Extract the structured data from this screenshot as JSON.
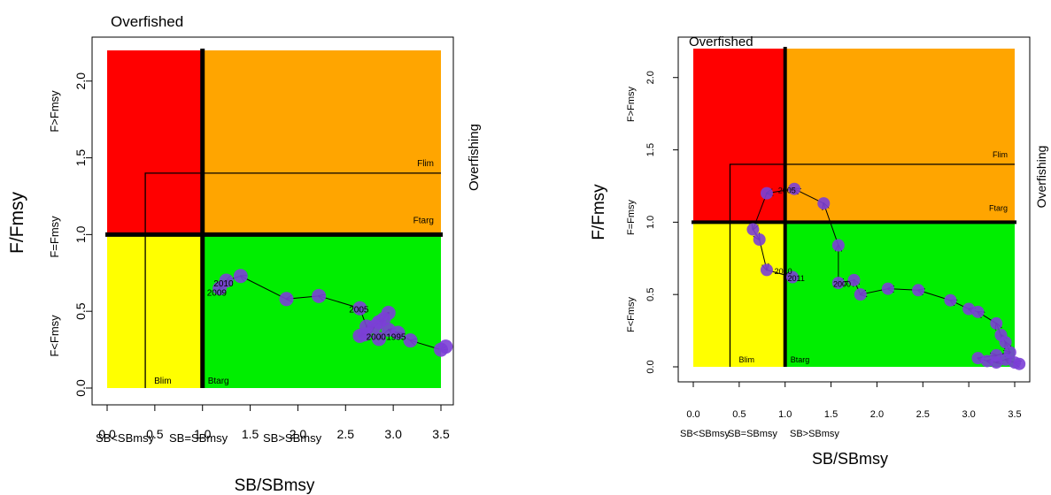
{
  "colors": {
    "red": "#ff0000",
    "orange": "#ffa500",
    "yellow": "#ffff00",
    "green": "#00ee00",
    "point": "#7b3fd6",
    "axis": "#000000"
  },
  "chart_data": [
    {
      "type": "scatter",
      "title": "Overfished",
      "xlabel": "SB/SBmsy",
      "ylabel": "F/Fmsy",
      "right_label": "Overfishing",
      "xlim": [
        0,
        3.5
      ],
      "ylim": [
        0,
        2.2
      ],
      "xticks": [
        "0.0",
        "0.5",
        "1.0",
        "1.5",
        "2.0",
        "2.5",
        "3.0",
        "3.5"
      ],
      "yticks": [
        "0.0",
        "0.5",
        "1.0",
        "1.5",
        "2.0"
      ],
      "x_zone_labels": [
        "SB<SBmsy",
        "SB=SBmsy",
        "SB>SBmsy"
      ],
      "y_zone_labels": [
        "F<Fmsy",
        "F=Fmsy",
        "F>Fmsy"
      ],
      "ref_lines": {
        "Blim": 0.4,
        "Btarg": 1.0,
        "Flim": 1.4,
        "Ftarg": 1.0
      },
      "ref_labels": {
        "Blim": "Blim",
        "Btarg": "Btarg",
        "Flim": "Flim",
        "Ftarg": "Ftarg"
      },
      "points": [
        {
          "x": 3.55,
          "y": 0.27
        },
        {
          "x": 3.5,
          "y": 0.25
        },
        {
          "x": 3.18,
          "y": 0.31
        },
        {
          "x": 3.05,
          "y": 0.36
        },
        {
          "x": 2.95,
          "y": 0.38
        },
        {
          "x": 2.85,
          "y": 0.32
        },
        {
          "x": 2.7,
          "y": 0.35
        },
        {
          "x": 2.65,
          "y": 0.34
        },
        {
          "x": 2.8,
          "y": 0.4
        },
        {
          "x": 2.9,
          "y": 0.45
        },
        {
          "x": 2.95,
          "y": 0.49
        },
        {
          "x": 2.85,
          "y": 0.43
        },
        {
          "x": 2.72,
          "y": 0.4
        },
        {
          "x": 2.65,
          "y": 0.52
        },
        {
          "x": 2.22,
          "y": 0.6
        },
        {
          "x": 1.88,
          "y": 0.58
        },
        {
          "x": 1.4,
          "y": 0.73
        },
        {
          "x": 1.25,
          "y": 0.7
        },
        {
          "x": 1.18,
          "y": 0.65
        }
      ],
      "year_labels": [
        {
          "text": "2000",
          "x": 2.82,
          "y": 0.33
        },
        {
          "text": "1995",
          "x": 3.03,
          "y": 0.33
        },
        {
          "text": "2005",
          "x": 2.64,
          "y": 0.51
        },
        {
          "text": "2010",
          "x": 1.22,
          "y": 0.68
        },
        {
          "text": "2009",
          "x": 1.15,
          "y": 0.62
        }
      ]
    },
    {
      "type": "scatter",
      "title": "Overfished",
      "xlabel": "SB/SBmsy",
      "ylabel": "F/Fmsy",
      "right_label": "Overfishing",
      "xlim": [
        0,
        3.5
      ],
      "ylim": [
        0,
        2.2
      ],
      "xticks": [
        "0.0",
        "0.5",
        "1.0",
        "1.5",
        "2.0",
        "2.5",
        "3.0",
        "3.5"
      ],
      "yticks": [
        "0.0",
        "0.5",
        "1.0",
        "1.5",
        "2.0"
      ],
      "x_zone_labels": [
        "SB<SBmsy",
        "SB=SBmsy",
        "SB>SBmsy"
      ],
      "y_zone_labels": [
        "F<Fmsy",
        "F=Fmsy",
        "F>Fmsy"
      ],
      "ref_lines": {
        "Blim": 0.4,
        "Btarg": 1.0,
        "Flim": 1.4,
        "Ftarg": 1.0
      },
      "ref_labels": {
        "Blim": "Blim",
        "Btarg": "Btarg",
        "Flim": "Flim",
        "Ftarg": "Ftarg"
      },
      "points": [
        {
          "x": 3.55,
          "y": 0.02
        },
        {
          "x": 3.5,
          "y": 0.03
        },
        {
          "x": 3.4,
          "y": 0.05
        },
        {
          "x": 3.3,
          "y": 0.03
        },
        {
          "x": 3.2,
          "y": 0.04
        },
        {
          "x": 3.1,
          "y": 0.06
        },
        {
          "x": 3.3,
          "y": 0.08
        },
        {
          "x": 3.45,
          "y": 0.1
        },
        {
          "x": 3.4,
          "y": 0.17
        },
        {
          "x": 3.35,
          "y": 0.22
        },
        {
          "x": 3.3,
          "y": 0.3
        },
        {
          "x": 3.1,
          "y": 0.38
        },
        {
          "x": 3.0,
          "y": 0.4
        },
        {
          "x": 2.8,
          "y": 0.46
        },
        {
          "x": 2.45,
          "y": 0.53
        },
        {
          "x": 2.12,
          "y": 0.54
        },
        {
          "x": 1.82,
          "y": 0.5
        },
        {
          "x": 1.75,
          "y": 0.6
        },
        {
          "x": 1.58,
          "y": 0.58
        },
        {
          "x": 1.58,
          "y": 0.84
        },
        {
          "x": 1.42,
          "y": 1.13
        },
        {
          "x": 1.1,
          "y": 1.23
        },
        {
          "x": 0.8,
          "y": 1.2
        },
        {
          "x": 0.65,
          "y": 0.95
        },
        {
          "x": 0.72,
          "y": 0.88
        },
        {
          "x": 0.8,
          "y": 0.67
        },
        {
          "x": 1.08,
          "y": 0.62
        }
      ],
      "year_labels": [
        {
          "text": "2005",
          "x": 1.02,
          "y": 1.22
        },
        {
          "text": "2000",
          "x": 1.62,
          "y": 0.57
        },
        {
          "text": "2010",
          "x": 0.98,
          "y": 0.66
        },
        {
          "text": "2011",
          "x": 1.12,
          "y": 0.61
        }
      ]
    }
  ]
}
